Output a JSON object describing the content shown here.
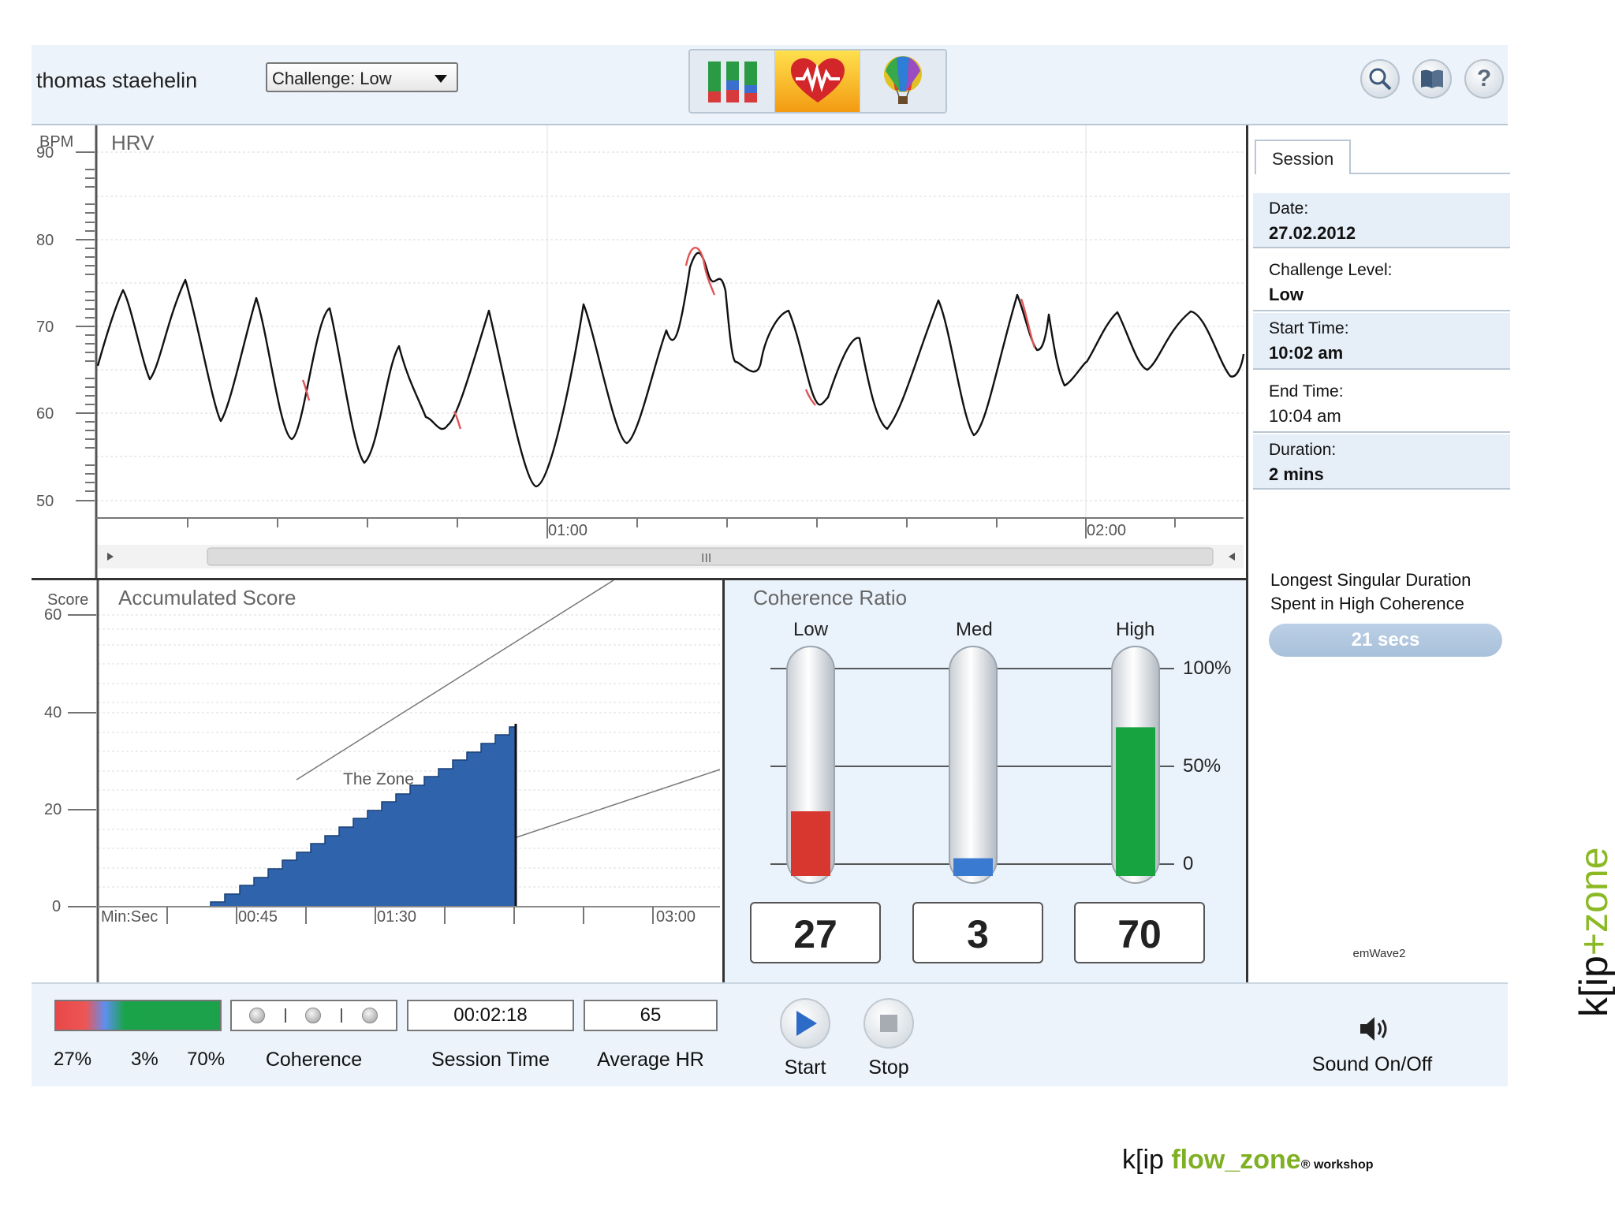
{
  "header": {
    "username": "thomas staehelin",
    "challenge_label": "Challenge: Low",
    "modes": [
      {
        "name": "bars-mode-icon",
        "active": false
      },
      {
        "name": "heart-mode-icon",
        "active": true
      },
      {
        "name": "balloon-mode-icon",
        "active": false
      }
    ],
    "right_icons": [
      "search-icon",
      "book-icon",
      "help-icon"
    ],
    "help_glyph": "?"
  },
  "hrv": {
    "title": "HRV",
    "y_unit": "BPM",
    "y_ticks": [
      "90",
      "80",
      "70",
      "60",
      "50"
    ],
    "x_ticks": [
      "01:00",
      "02:00"
    ],
    "scroll_grip": "III"
  },
  "score": {
    "title": "Accumulated Score",
    "y_unit": "Score",
    "y_ticks": [
      "60",
      "40",
      "20",
      "0"
    ],
    "x_ticks": [
      "Min:Sec",
      "00:45",
      "01:30",
      "03:00"
    ],
    "zone_label": "The Zone"
  },
  "coherence": {
    "title": "Coherence Ratio",
    "columns": [
      "Low",
      "Med",
      "High"
    ],
    "scale": [
      "100%",
      "50%",
      "0"
    ],
    "values": [
      "27",
      "3",
      "70"
    ],
    "fill_fraction": [
      0.27,
      0.03,
      0.7
    ],
    "colors": [
      "#d7372f",
      "#3b7ad1",
      "#18a341"
    ]
  },
  "session": {
    "tab": "Session",
    "rows": [
      {
        "label": "Date:",
        "value": "27.02.2012"
      },
      {
        "label": "Challenge Level:",
        "value": "Low"
      },
      {
        "label": "Start Time:",
        "value": "10:02 am"
      },
      {
        "label": "End Time:",
        "value": "10:04 am"
      },
      {
        "label": "Duration:",
        "value": "2 mins"
      }
    ],
    "longest_line1": "Longest Singular Duration",
    "longest_line2": "Spent in High Coherence",
    "longest_value": "21 secs",
    "device": "emWave2"
  },
  "bottom": {
    "pct_low": "27%",
    "pct_med": "3%",
    "pct_high": "70%",
    "coherence_label": "Coherence",
    "session_time": "00:02:18",
    "session_time_label": "Session Time",
    "average_hr": "65",
    "average_hr_label": "Average HR",
    "start_label": "Start",
    "stop_label": "Stop",
    "sound_label": "Sound On/Off"
  },
  "branding": {
    "vertical_a": "k[ip",
    "vertical_plus": "+",
    "vertical_b": "zone",
    "footer_a": "k[ip ",
    "footer_b": "flow_zone",
    "footer_c": "® workshop"
  }
}
